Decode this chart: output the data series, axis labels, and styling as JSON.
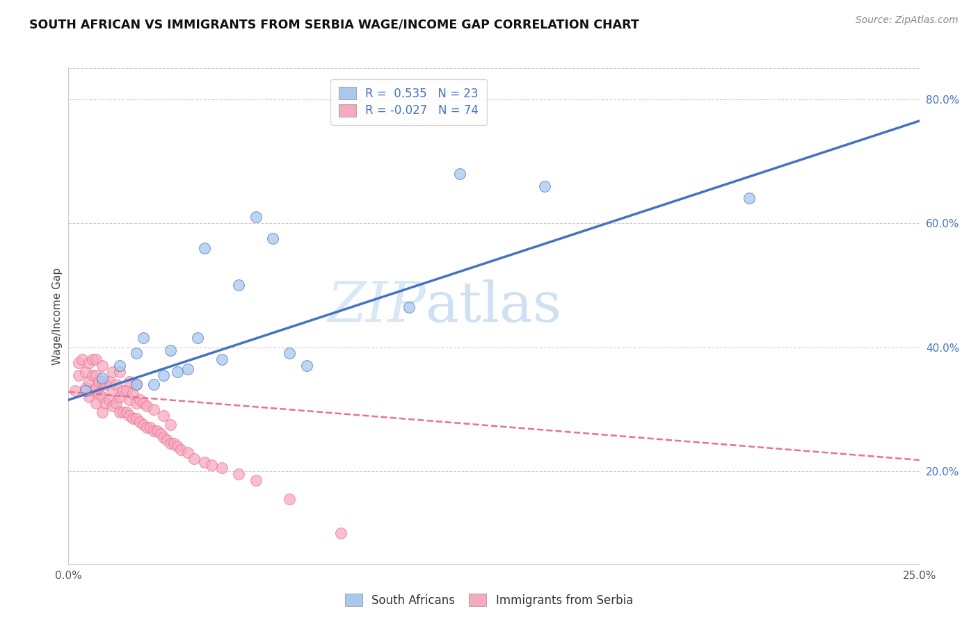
{
  "title": "SOUTH AFRICAN VS IMMIGRANTS FROM SERBIA WAGE/INCOME GAP CORRELATION CHART",
  "source": "Source: ZipAtlas.com",
  "ylabel": "Wage/Income Gap",
  "xlim": [
    0.0,
    0.25
  ],
  "ylim": [
    0.05,
    0.85
  ],
  "xticks": [
    0.0,
    0.05,
    0.1,
    0.15,
    0.2,
    0.25
  ],
  "xticklabels": [
    "0.0%",
    "",
    "",
    "",
    "",
    "25.0%"
  ],
  "yticks_right": [
    0.2,
    0.4,
    0.6,
    0.8
  ],
  "ytick_right_labels": [
    "20.0%",
    "40.0%",
    "60.0%",
    "80.0%"
  ],
  "watermark_zip": "ZIP",
  "watermark_atlas": "atlas",
  "legend_R1": "R =  0.535",
  "legend_N1": "N = 23",
  "legend_R2": "R = -0.027",
  "legend_N2": "N = 74",
  "color_blue": "#A8C8EE",
  "color_pink": "#F7AABF",
  "color_blue_line": "#4472C4",
  "color_pink_line": "#E87090",
  "color_text_blue": "#4472C4",
  "blue_trend_x0": 0.0,
  "blue_trend_y0": 0.315,
  "blue_trend_x1": 0.25,
  "blue_trend_y1": 0.765,
  "pink_trend_x0": 0.0,
  "pink_trend_y0": 0.328,
  "pink_trend_x1": 0.25,
  "pink_trend_y1": 0.218,
  "south_africans_x": [
    0.005,
    0.01,
    0.015,
    0.02,
    0.02,
    0.022,
    0.025,
    0.028,
    0.03,
    0.032,
    0.035,
    0.038,
    0.04,
    0.045,
    0.05,
    0.055,
    0.06,
    0.065,
    0.07,
    0.1,
    0.115,
    0.14,
    0.2
  ],
  "south_africans_y": [
    0.33,
    0.35,
    0.37,
    0.34,
    0.39,
    0.415,
    0.34,
    0.355,
    0.395,
    0.36,
    0.365,
    0.415,
    0.56,
    0.38,
    0.5,
    0.61,
    0.575,
    0.39,
    0.37,
    0.465,
    0.68,
    0.66,
    0.64
  ],
  "serbia_x": [
    0.002,
    0.003,
    0.003,
    0.004,
    0.005,
    0.005,
    0.006,
    0.006,
    0.006,
    0.007,
    0.007,
    0.007,
    0.008,
    0.008,
    0.008,
    0.008,
    0.009,
    0.009,
    0.01,
    0.01,
    0.01,
    0.01,
    0.011,
    0.011,
    0.012,
    0.012,
    0.013,
    0.013,
    0.013,
    0.014,
    0.014,
    0.015,
    0.015,
    0.015,
    0.016,
    0.016,
    0.017,
    0.017,
    0.018,
    0.018,
    0.018,
    0.019,
    0.019,
    0.02,
    0.02,
    0.02,
    0.021,
    0.021,
    0.022,
    0.022,
    0.023,
    0.023,
    0.024,
    0.025,
    0.025,
    0.026,
    0.027,
    0.028,
    0.028,
    0.029,
    0.03,
    0.03,
    0.031,
    0.032,
    0.033,
    0.035,
    0.037,
    0.04,
    0.042,
    0.045,
    0.05,
    0.055,
    0.065,
    0.08
  ],
  "serbia_y": [
    0.33,
    0.355,
    0.375,
    0.38,
    0.335,
    0.36,
    0.32,
    0.345,
    0.375,
    0.33,
    0.355,
    0.38,
    0.31,
    0.335,
    0.355,
    0.38,
    0.325,
    0.345,
    0.295,
    0.32,
    0.345,
    0.37,
    0.31,
    0.34,
    0.315,
    0.345,
    0.305,
    0.33,
    0.36,
    0.31,
    0.34,
    0.295,
    0.32,
    0.36,
    0.295,
    0.33,
    0.295,
    0.33,
    0.29,
    0.315,
    0.345,
    0.285,
    0.325,
    0.285,
    0.31,
    0.34,
    0.28,
    0.315,
    0.275,
    0.31,
    0.27,
    0.305,
    0.27,
    0.265,
    0.3,
    0.265,
    0.26,
    0.255,
    0.29,
    0.25,
    0.245,
    0.275,
    0.245,
    0.24,
    0.235,
    0.23,
    0.22,
    0.215,
    0.21,
    0.205,
    0.195,
    0.185,
    0.155,
    0.1
  ],
  "background_color": "#FFFFFF",
  "grid_color": "#CCCCCC"
}
